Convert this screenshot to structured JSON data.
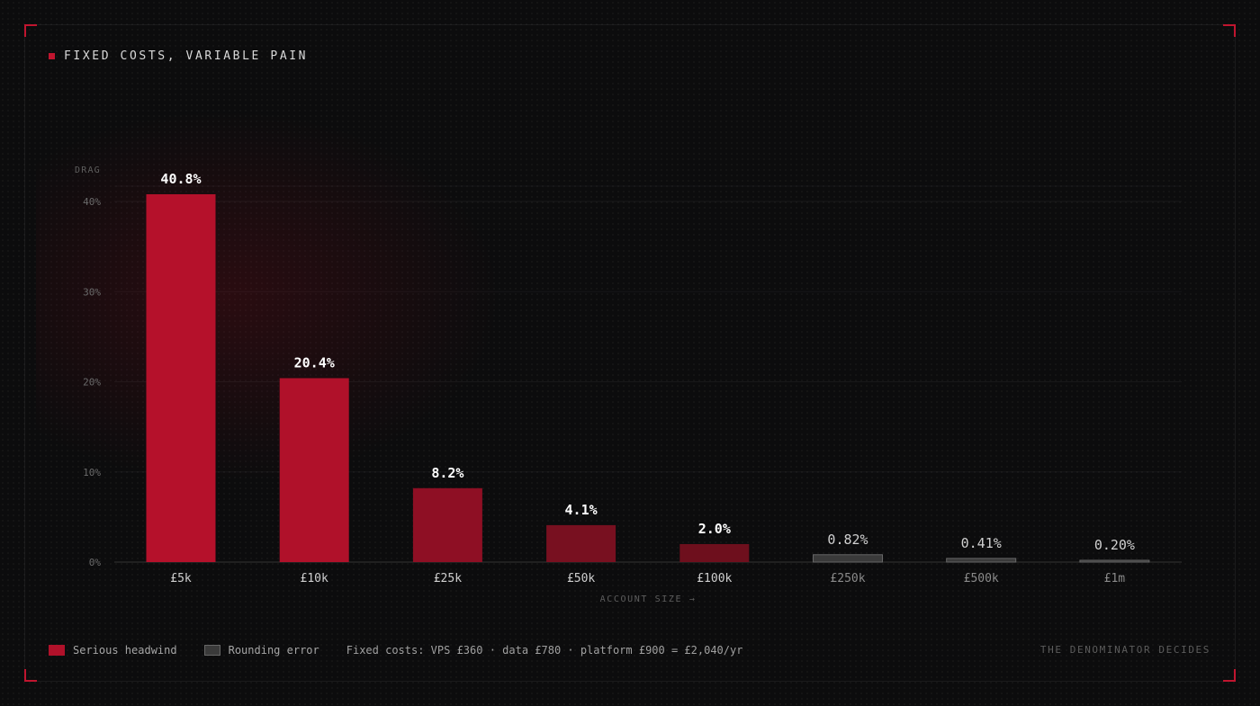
{
  "title": "FIXED COSTS, VARIABLE PAIN",
  "tagline": "THE DENOMINATOR DECIDES",
  "legend": {
    "serious": "Serious headwind",
    "rounding": "Rounding error",
    "note": "Fixed costs: VPS £360 · data £780 · platform £900 = £2,040/yr"
  },
  "colors": {
    "accent": "#c0152f",
    "serious_bar": "#b0112a",
    "rounding_bar": "#3a3a3a"
  },
  "chart_data": {
    "type": "bar",
    "ylabel": "DRAG",
    "xlabel": "ACCOUNT SIZE →",
    "ylim": [
      0,
      40
    ],
    "y_ticks": [
      {
        "value": 0,
        "label": "0%"
      },
      {
        "value": 10,
        "label": "10%"
      },
      {
        "value": 20,
        "label": "20%"
      },
      {
        "value": 30,
        "label": "30%"
      },
      {
        "value": 40,
        "label": "40%"
      }
    ],
    "categories": [
      "£5k",
      "£10k",
      "£25k",
      "£50k",
      "£100k",
      "£250k",
      "£500k",
      "£1m"
    ],
    "values": [
      40.8,
      20.4,
      8.2,
      4.1,
      2.0,
      0.82,
      0.41,
      0.2
    ],
    "value_labels": [
      "40.8%",
      "20.4%",
      "8.2%",
      "4.1%",
      "2.0%",
      "0.82%",
      "0.41%",
      "0.20%"
    ],
    "groups": [
      "serious",
      "serious",
      "serious",
      "serious",
      "serious",
      "rounding",
      "rounding",
      "rounding"
    ],
    "grid": true,
    "legend_position": "bottom-left"
  }
}
